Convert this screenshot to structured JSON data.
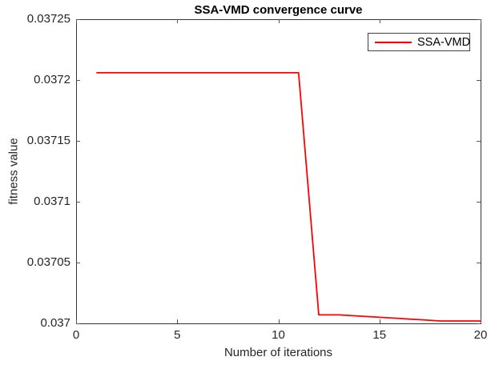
{
  "figure": {
    "title": "SSA-VMD convergence curve",
    "xlabel": "Number of iterations",
    "ylabel": "fitness value",
    "legend": {
      "label": "SSA-VMD",
      "position": "top-right"
    }
  },
  "colors": {
    "line": "#ff0000",
    "axis_box": "#333333",
    "tick_mark": "#555555",
    "tick_label": "#262626",
    "title": "#000000",
    "background": "#ffffff"
  },
  "chart_data": {
    "type": "line",
    "title": "SSA-VMD convergence curve",
    "xlabel": "Number of iterations",
    "ylabel": "fitness value",
    "xlim": [
      0,
      20
    ],
    "ylim": [
      0.037,
      0.03725
    ],
    "grid": false,
    "box": true,
    "tick_direction": "in",
    "legend_position": "top-right",
    "xticks": [
      0,
      5,
      10,
      15,
      20
    ],
    "xtick_labels": [
      "0",
      "5",
      "10",
      "15",
      "20"
    ],
    "yticks": [
      0.037,
      0.03705,
      0.0371,
      0.03715,
      0.0372,
      0.03725
    ],
    "ytick_labels": [
      "0.037",
      "0.03705",
      "0.0371",
      "0.03715",
      "0.0372",
      "0.03725"
    ],
    "series": [
      {
        "name": "SSA-VMD",
        "color": "#ff0000",
        "x": [
          1,
          2,
          3,
          4,
          5,
          6,
          7,
          8,
          9,
          10,
          11,
          12,
          13,
          14,
          15,
          16,
          17,
          18,
          19,
          20
        ],
        "y": [
          0.037206,
          0.037206,
          0.037206,
          0.037206,
          0.037206,
          0.037206,
          0.037206,
          0.037206,
          0.037206,
          0.037206,
          0.037206,
          0.037007,
          0.037007,
          0.037006,
          0.037005,
          0.037004,
          0.037003,
          0.037002,
          0.037002,
          0.037002
        ]
      }
    ]
  }
}
